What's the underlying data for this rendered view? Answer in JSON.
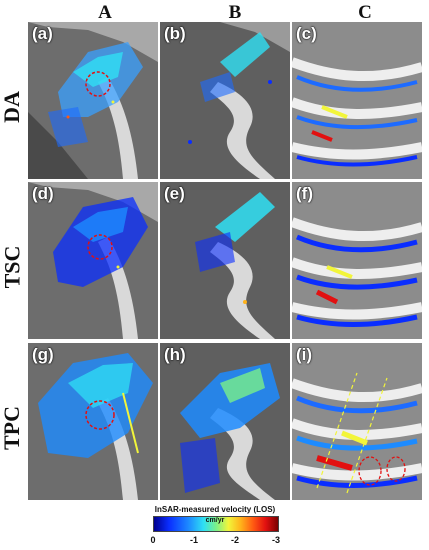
{
  "columns": [
    "A",
    "B",
    "C"
  ],
  "rows": [
    "DA",
    "TSC",
    "TPC"
  ],
  "panels": {
    "a": "(a)",
    "b": "(b)",
    "c": "(c)",
    "d": "(d)",
    "e": "(e)",
    "f": "(f)",
    "g": "(g)",
    "h": "(h)",
    "i": "(i)"
  },
  "legend": {
    "title": "InSAR-measured velocity (LOS)",
    "unit": "cm/yr",
    "ticks": [
      "0",
      "-1",
      "-2",
      "-3"
    ],
    "colors": [
      "#00008f",
      "#0a2dff",
      "#1d8bff",
      "#2fe0f4",
      "#79f08a",
      "#f2f53a",
      "#ffb21a",
      "#ff5a12",
      "#e21010",
      "#7a0000"
    ]
  }
}
